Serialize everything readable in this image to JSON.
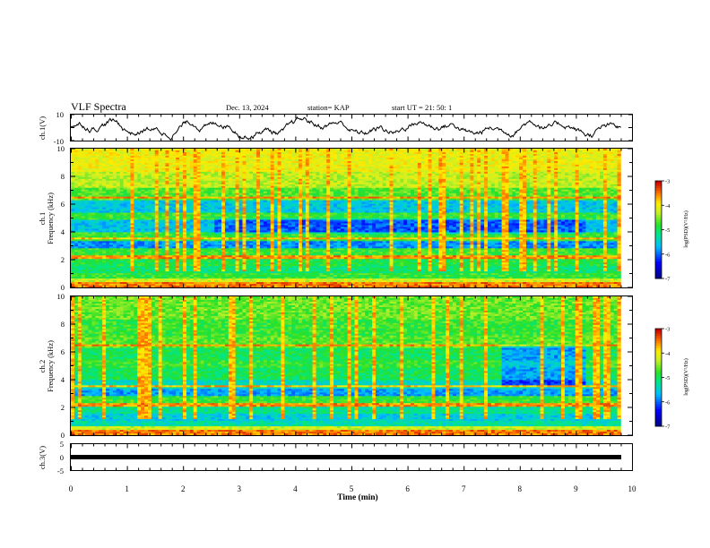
{
  "header": {
    "title": "VLF Spectra",
    "date": "Dec. 13, 2024",
    "station": "station= KAP",
    "start": "start  UT  =   21: 50: 1"
  },
  "chart_data": [
    {
      "type": "line",
      "name": "ch1-waveform",
      "ylabel": "ch.1(V)",
      "ylim": [
        -10,
        10
      ],
      "yticks": [
        "10",
        "-10"
      ],
      "xlim": [
        0,
        10
      ]
    },
    {
      "type": "heatmap",
      "name": "ch1-spectrogram",
      "ylabel_top": "ch.1",
      "ylabel": "Frequency  (kHz)",
      "ylim": [
        0,
        10
      ],
      "yticks": [
        "0",
        "2",
        "4",
        "6",
        "8",
        "10"
      ],
      "xlim": [
        0,
        10
      ],
      "colorbar": {
        "label": "log(PSD)(V²/Hz)",
        "range": [
          -7,
          -3
        ],
        "ticks": [
          "-3",
          "-4",
          "-5",
          "-6",
          "-7"
        ]
      }
    },
    {
      "type": "heatmap",
      "name": "ch2-spectrogram",
      "ylabel_top": "ch.2",
      "ylabel": "Frequency  (kHz)",
      "ylim": [
        0,
        10
      ],
      "yticks": [
        "0",
        "2",
        "4",
        "6",
        "8",
        "10"
      ],
      "xlim": [
        0,
        10
      ],
      "colorbar": {
        "label": "log(PSD)(V²/Hz)",
        "range": [
          -7,
          -3
        ],
        "ticks": [
          "-3",
          "-4",
          "-5",
          "-6",
          "-7"
        ]
      }
    },
    {
      "type": "line",
      "name": "ch3-waveform",
      "ylabel": "ch.3(V)",
      "ylim": [
        -5,
        5
      ],
      "yticks": [
        "5",
        "0",
        "-5"
      ],
      "xlim": [
        0,
        10
      ]
    }
  ],
  "xaxis": {
    "label": "Time  (min)",
    "ticks": [
      "0",
      "1",
      "2",
      "3",
      "4",
      "5",
      "6",
      "7",
      "8",
      "9",
      "10"
    ],
    "data_end": 9.8
  }
}
